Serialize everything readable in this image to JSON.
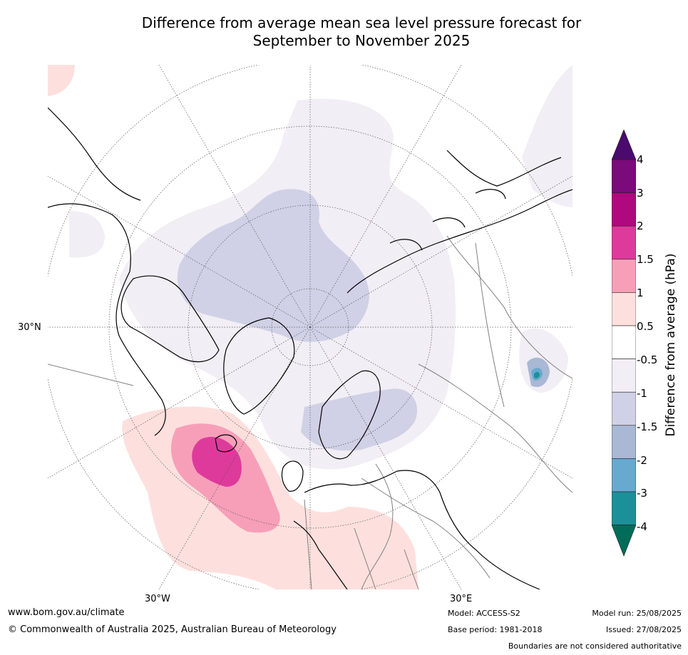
{
  "title_line1": "Difference from average mean sea level pressure forecast for",
  "title_line2": "September to November 2025",
  "map": {
    "projection": "north-polar-stereographic",
    "lat_labels": [
      "30°N"
    ],
    "lon_labels": [
      "30°W",
      "30°E"
    ],
    "colors": {
      "coast": "#000000",
      "borders": "#808080",
      "graticule": "#555555"
    }
  },
  "colorbar": {
    "title": "Difference from average (hPa)",
    "ticks": [
      "4",
      "3",
      "2",
      "1.5",
      "1",
      "0.5",
      "-0.5",
      "-1",
      "-1.5",
      "-2",
      "-3",
      "-4"
    ],
    "bands": [
      {
        "label": "> 4",
        "color": "#4b0a6e"
      },
      {
        "label": "3 to 4",
        "color": "#7b0a7a"
      },
      {
        "label": "2 to 3",
        "color": "#b0087e"
      },
      {
        "label": "1.5 to 2",
        "color": "#de3a9c"
      },
      {
        "label": "1 to 1.5",
        "color": "#f79fb9"
      },
      {
        "label": "0.5 to 1",
        "color": "#fde0de"
      },
      {
        "label": "-0.5 to 0.5",
        "color": "#ffffff"
      },
      {
        "label": "-1 to -0.5",
        "color": "#f2eef5"
      },
      {
        "label": "-1.5 to -1",
        "color": "#d0d1e6"
      },
      {
        "label": "-2 to -1.5",
        "color": "#a9b8d4"
      },
      {
        "label": "-3 to -2",
        "color": "#67a9cf"
      },
      {
        "label": "-4 to -3",
        "color": "#1c9099"
      },
      {
        "label": "< -4",
        "color": "#016c59"
      }
    ]
  },
  "footer": {
    "website": "www.bom.gov.au/climate",
    "copyright": "© Commonwealth of Australia 2025, Australian Bureau of Meteorology",
    "model": "Model: ACCESS-S2",
    "base_period": "Base period: 1981-2018",
    "model_run": "Model run: 25/08/2025",
    "issued": "Issued: 27/08/2025",
    "disclaimer": "Boundaries are not considered authoritative"
  }
}
